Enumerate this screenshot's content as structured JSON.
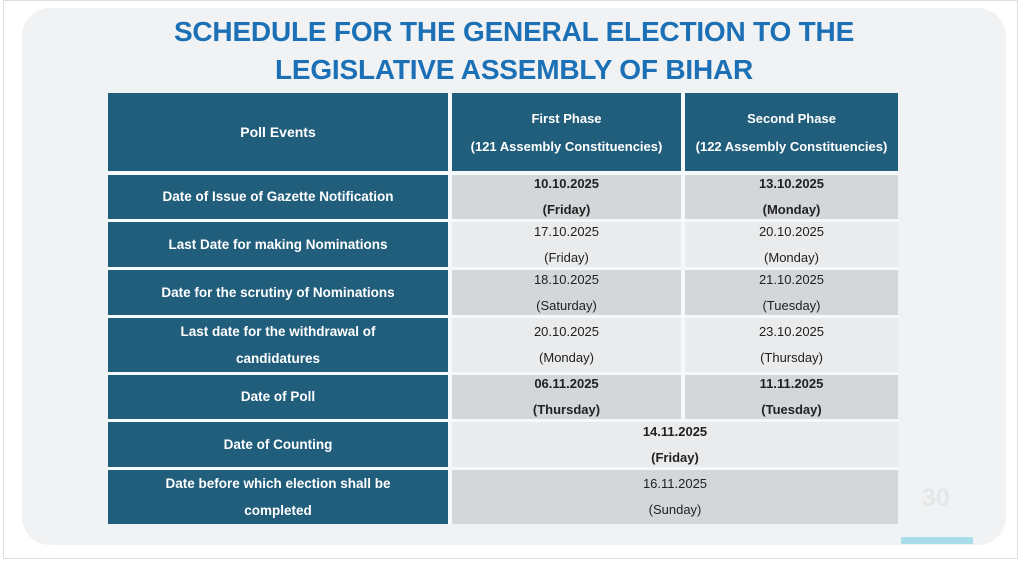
{
  "title": {
    "line1": "SCHEDULE FOR THE GENERAL ELECTION TO THE",
    "line2": "LEGISLATIVE ASSEMBLY OF BIHAR"
  },
  "table": {
    "header": {
      "poll_events": "Poll Events",
      "first_phase_title": "First Phase",
      "first_phase_sub": "(121 Assembly Constituencies)",
      "second_phase_title": "Second Phase",
      "second_phase_sub": "(122 Assembly Constituencies)"
    },
    "rows": [
      {
        "event": "Date of Issue of Gazette Notification",
        "first": {
          "date": "10.10.2025",
          "day": "(Friday)"
        },
        "second": {
          "date": "13.10.2025",
          "day": "(Monday)"
        },
        "bold": true,
        "shade": "dark",
        "merged": false
      },
      {
        "event": "Last Date for making Nominations",
        "first": {
          "date": "17.10.2025",
          "day": "(Friday)"
        },
        "second": {
          "date": "20.10.2025",
          "day": "(Monday)"
        },
        "bold": false,
        "shade": "light",
        "merged": false
      },
      {
        "event": "Date for the scrutiny of Nominations",
        "first": {
          "date": "18.10.2025",
          "day": "(Saturday)"
        },
        "second": {
          "date": "21.10.2025",
          "day": "(Tuesday)"
        },
        "bold": false,
        "shade": "dark",
        "merged": false
      },
      {
        "event": "Last date for the withdrawal of\ncandidatures",
        "first": {
          "date": "20.10.2025",
          "day": "(Monday)"
        },
        "second": {
          "date": "23.10.2025",
          "day": "(Thursday)"
        },
        "bold": false,
        "shade": "light",
        "merged": false
      },
      {
        "event": "Date of Poll",
        "first": {
          "date": "06.11.2025",
          "day": "(Thursday)"
        },
        "second": {
          "date": "11.11.2025",
          "day": "(Tuesday)"
        },
        "bold": true,
        "shade": "dark",
        "merged": false
      },
      {
        "event": "Date of Counting",
        "first": {
          "date": "14.11.2025",
          "day": "(Friday)"
        },
        "bold": true,
        "shade": "light",
        "merged": true
      },
      {
        "event": "Date before which election shall be\ncompleted",
        "first": {
          "date": "16.11.2025",
          "day": "(Sunday)"
        },
        "bold": false,
        "shade": "dark",
        "merged": true
      }
    ]
  },
  "page_number": "30",
  "colors": {
    "teal": "#215e7c",
    "title_blue": "#1b70b6",
    "row_dark": "#d4d7da",
    "row_light": "#e9ebec",
    "gap": "#f7f8f9",
    "card_bg": "#f1f2f3",
    "progress_cyan": "#a9dde9",
    "page_number_gray": "#e4e6e8"
  }
}
